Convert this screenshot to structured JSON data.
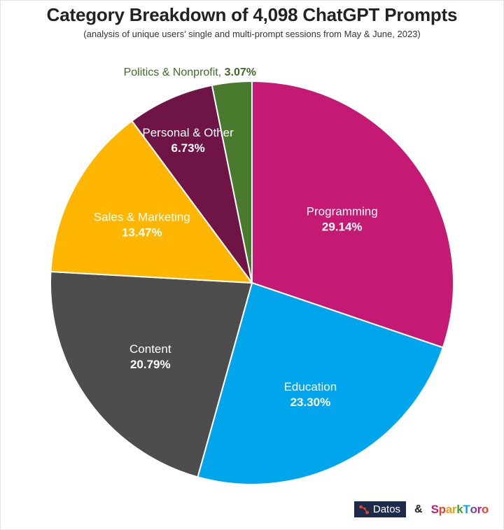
{
  "header": {
    "title": "Category Breakdown of 4,098 ChatGPT Prompts",
    "subtitle": "(analysis of unique users’ single and multi-prompt sessions from May & June, 2023)"
  },
  "chart_data": {
    "type": "pie",
    "title": "Category Breakdown of 4,098 ChatGPT Prompts",
    "subtitle": "(analysis of unique users’ single and multi-prompt sessions from May & June, 2023)",
    "slices": [
      {
        "label": "Programming",
        "value": 29.14,
        "value_label": "29.14%",
        "color": "#c41a74"
      },
      {
        "label": "Education",
        "value": 23.3,
        "value_label": "23.30%",
        "color": "#00a5ec"
      },
      {
        "label": "Content",
        "value": 20.79,
        "value_label": "20.79%",
        "color": "#4d4d4d"
      },
      {
        "label": "Sales & Marketing",
        "value": 13.47,
        "value_label": "13.47%",
        "color": "#ffb600"
      },
      {
        "label": "Personal & Other",
        "value": 6.73,
        "value_label": "6.73%",
        "color": "#6e1545"
      },
      {
        "label": "Politics & Nonprofit,",
        "value": 3.07,
        "value_label": "3.07%",
        "color": "#4a7a2e"
      }
    ],
    "start_angle": "12 o'clock, clockwise"
  },
  "footer": {
    "datos": "Datos",
    "ampersand": "&",
    "sparktoro": "SparkToro",
    "sparktoro_colors": [
      "#c41a74",
      "#e8432a",
      "#f39a1f",
      "#d4b000",
      "#4a9a2e",
      "#00a5ec",
      "#6b4aa8",
      "#c41a74",
      "#e8432a"
    ]
  }
}
